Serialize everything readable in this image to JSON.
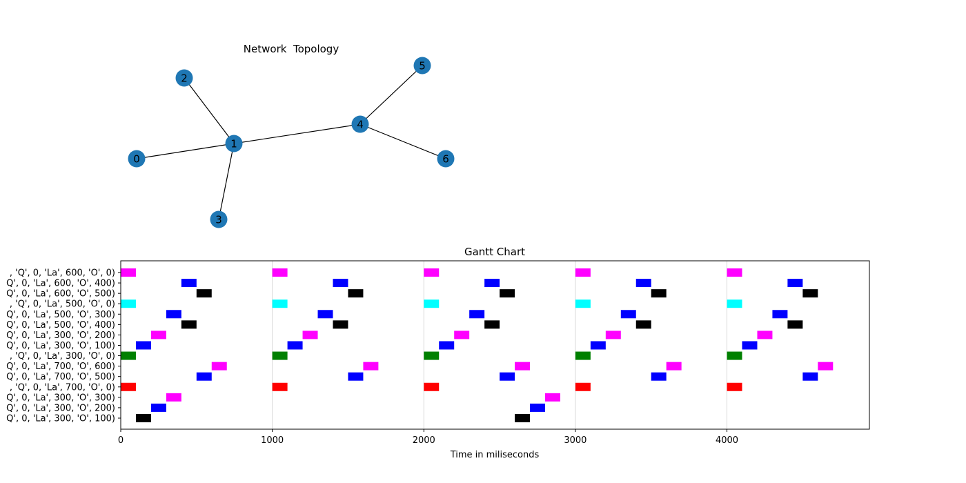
{
  "chart_data": [
    {
      "type": "network",
      "title": "Network  Topology",
      "nodes": [
        "0",
        "1",
        "2",
        "3",
        "4",
        "5",
        "6"
      ],
      "edges": [
        [
          "0",
          "1"
        ],
        [
          "2",
          "1"
        ],
        [
          "3",
          "1"
        ],
        [
          "1",
          "4"
        ],
        [
          "4",
          "5"
        ],
        [
          "4",
          "6"
        ]
      ],
      "node_color": "#1f77b4",
      "edge_color": "#000000"
    },
    {
      "type": "gantt",
      "title": "Gantt Chart",
      "xlabel": "Time in miliseconds",
      "xlim": [
        0,
        4940
      ],
      "xticks": [
        0,
        1000,
        2000,
        3000,
        4000
      ],
      "grid_x": true,
      "rows": [
        ", 'Q', 0, 'La', 600, 'O', 0)",
        "Q', 0, 'La', 600, 'O', 400)",
        "Q', 0, 'La', 600, 'O', 500)",
        ", 'Q', 0, 'La', 500, 'O', 0)",
        "Q', 0, 'La', 500, 'O', 300)",
        "Q', 0, 'La', 500, 'O', 400)",
        "Q', 0, 'La', 300, 'O', 200)",
        "Q', 0, 'La', 300, 'O', 100)",
        ", 'Q', 0, 'La', 300, 'O', 0)",
        "Q', 0, 'La', 700, 'O', 600)",
        "Q', 0, 'La', 700, 'O', 500)",
        ", 'Q', 0, 'La', 700, 'O', 0)",
        "Q', 0, 'La', 300, 'O', 300)",
        "Q', 0, 'La', 300, 'O', 200)",
        "Q', 0, 'La', 300, 'O', 100)"
      ],
      "tasks": [
        {
          "row": 0,
          "start": 0,
          "end": 100,
          "color": "#ff00ff"
        },
        {
          "row": 0,
          "start": 1000,
          "end": 1100,
          "color": "#ff00ff"
        },
        {
          "row": 0,
          "start": 2000,
          "end": 2100,
          "color": "#ff00ff"
        },
        {
          "row": 0,
          "start": 3000,
          "end": 3100,
          "color": "#ff00ff"
        },
        {
          "row": 0,
          "start": 4000,
          "end": 4100,
          "color": "#ff00ff"
        },
        {
          "row": 1,
          "start": 400,
          "end": 500,
          "color": "#0000ff"
        },
        {
          "row": 1,
          "start": 1400,
          "end": 1500,
          "color": "#0000ff"
        },
        {
          "row": 1,
          "start": 2400,
          "end": 2500,
          "color": "#0000ff"
        },
        {
          "row": 1,
          "start": 3400,
          "end": 3500,
          "color": "#0000ff"
        },
        {
          "row": 1,
          "start": 4400,
          "end": 4500,
          "color": "#0000ff"
        },
        {
          "row": 2,
          "start": 500,
          "end": 600,
          "color": "#000000"
        },
        {
          "row": 2,
          "start": 1500,
          "end": 1600,
          "color": "#000000"
        },
        {
          "row": 2,
          "start": 2500,
          "end": 2600,
          "color": "#000000"
        },
        {
          "row": 2,
          "start": 3500,
          "end": 3600,
          "color": "#000000"
        },
        {
          "row": 2,
          "start": 4500,
          "end": 4600,
          "color": "#000000"
        },
        {
          "row": 3,
          "start": 0,
          "end": 100,
          "color": "#00ffff"
        },
        {
          "row": 3,
          "start": 1000,
          "end": 1100,
          "color": "#00ffff"
        },
        {
          "row": 3,
          "start": 2000,
          "end": 2100,
          "color": "#00ffff"
        },
        {
          "row": 3,
          "start": 3000,
          "end": 3100,
          "color": "#00ffff"
        },
        {
          "row": 3,
          "start": 4000,
          "end": 4100,
          "color": "#00ffff"
        },
        {
          "row": 4,
          "start": 300,
          "end": 400,
          "color": "#0000ff"
        },
        {
          "row": 4,
          "start": 1300,
          "end": 1400,
          "color": "#0000ff"
        },
        {
          "row": 4,
          "start": 2300,
          "end": 2400,
          "color": "#0000ff"
        },
        {
          "row": 4,
          "start": 3300,
          "end": 3400,
          "color": "#0000ff"
        },
        {
          "row": 4,
          "start": 4300,
          "end": 4400,
          "color": "#0000ff"
        },
        {
          "row": 5,
          "start": 400,
          "end": 500,
          "color": "#000000"
        },
        {
          "row": 5,
          "start": 1400,
          "end": 1500,
          "color": "#000000"
        },
        {
          "row": 5,
          "start": 2400,
          "end": 2500,
          "color": "#000000"
        },
        {
          "row": 5,
          "start": 3400,
          "end": 3500,
          "color": "#000000"
        },
        {
          "row": 5,
          "start": 4400,
          "end": 4500,
          "color": "#000000"
        },
        {
          "row": 6,
          "start": 200,
          "end": 300,
          "color": "#ff00ff"
        },
        {
          "row": 6,
          "start": 1200,
          "end": 1300,
          "color": "#ff00ff"
        },
        {
          "row": 6,
          "start": 2200,
          "end": 2300,
          "color": "#ff00ff"
        },
        {
          "row": 6,
          "start": 3200,
          "end": 3300,
          "color": "#ff00ff"
        },
        {
          "row": 6,
          "start": 4200,
          "end": 4300,
          "color": "#ff00ff"
        },
        {
          "row": 7,
          "start": 100,
          "end": 200,
          "color": "#0000ff"
        },
        {
          "row": 7,
          "start": 1100,
          "end": 1200,
          "color": "#0000ff"
        },
        {
          "row": 7,
          "start": 2100,
          "end": 2200,
          "color": "#0000ff"
        },
        {
          "row": 7,
          "start": 3100,
          "end": 3200,
          "color": "#0000ff"
        },
        {
          "row": 7,
          "start": 4100,
          "end": 4200,
          "color": "#0000ff"
        },
        {
          "row": 8,
          "start": 0,
          "end": 100,
          "color": "#008000"
        },
        {
          "row": 8,
          "start": 1000,
          "end": 1100,
          "color": "#008000"
        },
        {
          "row": 8,
          "start": 2000,
          "end": 2100,
          "color": "#008000"
        },
        {
          "row": 8,
          "start": 3000,
          "end": 3100,
          "color": "#008000"
        },
        {
          "row": 8,
          "start": 4000,
          "end": 4100,
          "color": "#008000"
        },
        {
          "row": 9,
          "start": 600,
          "end": 700,
          "color": "#ff00ff"
        },
        {
          "row": 9,
          "start": 1600,
          "end": 1700,
          "color": "#ff00ff"
        },
        {
          "row": 9,
          "start": 2600,
          "end": 2700,
          "color": "#ff00ff"
        },
        {
          "row": 9,
          "start": 3600,
          "end": 3700,
          "color": "#ff00ff"
        },
        {
          "row": 9,
          "start": 4600,
          "end": 4700,
          "color": "#ff00ff"
        },
        {
          "row": 10,
          "start": 500,
          "end": 600,
          "color": "#0000ff"
        },
        {
          "row": 10,
          "start": 1500,
          "end": 1600,
          "color": "#0000ff"
        },
        {
          "row": 10,
          "start": 2500,
          "end": 2600,
          "color": "#0000ff"
        },
        {
          "row": 10,
          "start": 3500,
          "end": 3600,
          "color": "#0000ff"
        },
        {
          "row": 10,
          "start": 4500,
          "end": 4600,
          "color": "#0000ff"
        },
        {
          "row": 11,
          "start": 0,
          "end": 100,
          "color": "#ff0000"
        },
        {
          "row": 11,
          "start": 1000,
          "end": 1100,
          "color": "#ff0000"
        },
        {
          "row": 11,
          "start": 2000,
          "end": 2100,
          "color": "#ff0000"
        },
        {
          "row": 11,
          "start": 3000,
          "end": 3100,
          "color": "#ff0000"
        },
        {
          "row": 11,
          "start": 4000,
          "end": 4100,
          "color": "#ff0000"
        },
        {
          "row": 12,
          "start": 300,
          "end": 400,
          "color": "#ff00ff"
        },
        {
          "row": 12,
          "start": 2800,
          "end": 2900,
          "color": "#ff00ff"
        },
        {
          "row": 13,
          "start": 200,
          "end": 300,
          "color": "#0000ff"
        },
        {
          "row": 13,
          "start": 2700,
          "end": 2800,
          "color": "#0000ff"
        },
        {
          "row": 14,
          "start": 100,
          "end": 200,
          "color": "#000000"
        },
        {
          "row": 14,
          "start": 2600,
          "end": 2700,
          "color": "#000000"
        }
      ]
    }
  ]
}
